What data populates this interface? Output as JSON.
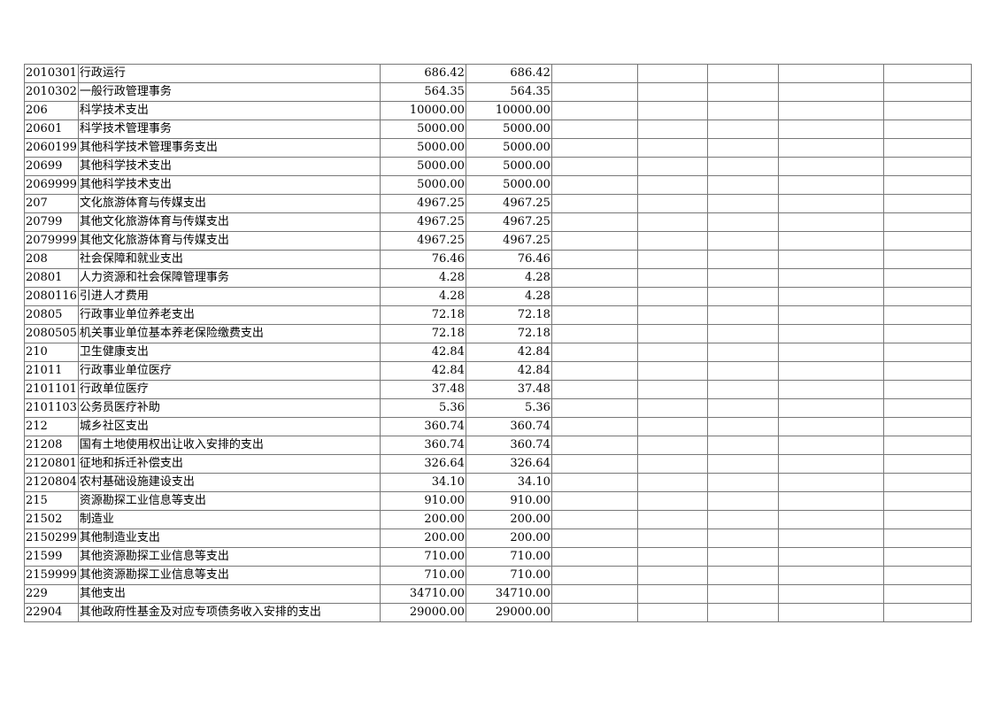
{
  "table": {
    "rows": [
      [
        "2010301",
        "行政运行",
        "686.42",
        "686.42"
      ],
      [
        "2010302",
        "一般行政管理事务",
        "564.35",
        "564.35"
      ],
      [
        "206",
        "科学技术支出",
        "10000.00",
        "10000.00"
      ],
      [
        "20601",
        "科学技术管理事务",
        "5000.00",
        "5000.00"
      ],
      [
        "2060199",
        "其他科学技术管理事务支出",
        "5000.00",
        "5000.00"
      ],
      [
        "20699",
        "其他科学技术支出",
        "5000.00",
        "5000.00"
      ],
      [
        "2069999",
        "其他科学技术支出",
        "5000.00",
        "5000.00"
      ],
      [
        "207",
        "文化旅游体育与传媒支出",
        "4967.25",
        "4967.25"
      ],
      [
        "20799",
        "其他文化旅游体育与传媒支出",
        "4967.25",
        "4967.25"
      ],
      [
        "2079999",
        "其他文化旅游体育与传媒支出",
        "4967.25",
        "4967.25"
      ],
      [
        "208",
        "社会保障和就业支出",
        "76.46",
        "76.46"
      ],
      [
        "20801",
        "人力资源和社会保障管理事务",
        "4.28",
        "4.28"
      ],
      [
        "2080116",
        "引进人才费用",
        "4.28",
        "4.28"
      ],
      [
        "20805",
        "行政事业单位养老支出",
        "72.18",
        "72.18"
      ],
      [
        "2080505",
        "机关事业单位基本养老保险缴费支出",
        "72.18",
        "72.18"
      ],
      [
        "210",
        "卫生健康支出",
        "42.84",
        "42.84"
      ],
      [
        "21011",
        "行政事业单位医疗",
        "42.84",
        "42.84"
      ],
      [
        "2101101",
        "行政单位医疗",
        "37.48",
        "37.48"
      ],
      [
        "2101103",
        "公务员医疗补助",
        "5.36",
        "5.36"
      ],
      [
        "212",
        "城乡社区支出",
        "360.74",
        "360.74"
      ],
      [
        "21208",
        "国有土地使用权出让收入安排的支出",
        "360.74",
        "360.74"
      ],
      [
        "2120801",
        "征地和拆迁补偿支出",
        "326.64",
        "326.64"
      ],
      [
        "2120804",
        "农村基础设施建设支出",
        "34.10",
        "34.10"
      ],
      [
        "215",
        "资源勘探工业信息等支出",
        "910.00",
        "910.00"
      ],
      [
        "21502",
        "制造业",
        "200.00",
        "200.00"
      ],
      [
        "2150299",
        "其他制造业支出",
        "200.00",
        "200.00"
      ],
      [
        "21599",
        "其他资源勘探工业信息等支出",
        "710.00",
        "710.00"
      ],
      [
        "2159999",
        "其他资源勘探工业信息等支出",
        "710.00",
        "710.00"
      ],
      [
        "229",
        "其他支出",
        "34710.00",
        "34710.00"
      ],
      [
        "22904",
        "其他政府性基金及对应专项债务收入安排的支出",
        "29000.00",
        "29000.00"
      ]
    ]
  }
}
